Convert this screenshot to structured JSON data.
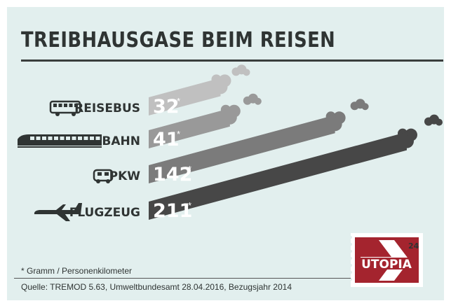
{
  "chart_data": {
    "type": "bar",
    "title": "TREIBHAUSGASE BEIM REISEN",
    "categories": [
      "REISEBUS",
      "BAHN",
      "PKW",
      "FLUGZEUG"
    ],
    "values": [
      32,
      41,
      142,
      211
    ],
    "value_suffix": "*",
    "colors": [
      "#c0c0c0",
      "#999999",
      "#7b7b7b",
      "#474747"
    ],
    "icons": [
      "bus-icon",
      "train-icon",
      "car-icon",
      "airplane-icon"
    ],
    "orientation": "horizontal, slanted bars rising to the right with smoke puffs",
    "xlim": [
      0,
      211
    ]
  },
  "footnote": "* Gramm / Personenkilometer",
  "source": "Quelle: TREMOD 5.63, Umweltbundesamt 28.04.2016, Bezugsjahr 2014",
  "logo": {
    "text": "UTOPIA",
    "number": "24",
    "colors": {
      "red": "#a4242e",
      "white": "#ffffff"
    }
  }
}
